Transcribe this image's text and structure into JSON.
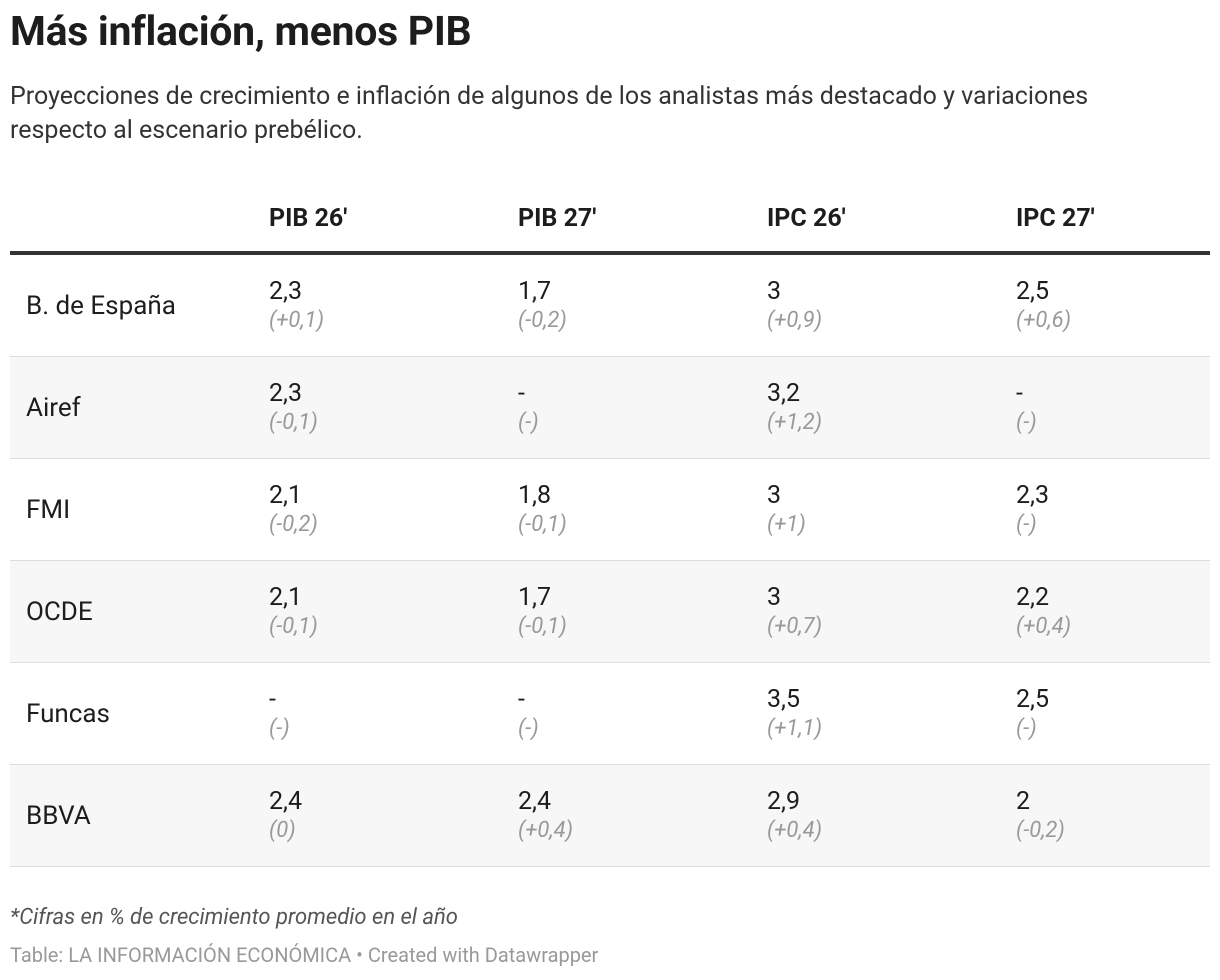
{
  "header": {
    "title": "Más inflación, menos PIB",
    "subtitle": "Proyecciones de crecimiento e inflación de algunos de los analistas más destacado y variaciones respecto al escenario prebélico."
  },
  "table": {
    "columns": [
      "PIB 26'",
      "PIB 27'",
      "IPC 26'",
      "IPC 27'"
    ],
    "rows": [
      {
        "name": "B. de España",
        "cells": [
          [
            "2,3",
            "(+0,1)"
          ],
          [
            "1,7",
            "(-0,2)"
          ],
          [
            "3",
            "(+0,9)"
          ],
          [
            "2,5",
            "(+0,6)"
          ]
        ]
      },
      {
        "name": "Airef",
        "cells": [
          [
            "2,3",
            "(-0,1)"
          ],
          [
            "-",
            "(-)"
          ],
          [
            "3,2",
            "(+1,2)"
          ],
          [
            "-",
            "(-)"
          ]
        ]
      },
      {
        "name": "FMI",
        "cells": [
          [
            "2,1",
            "(-0,2)"
          ],
          [
            "1,8",
            "(-0,1)"
          ],
          [
            "3",
            "(+1)"
          ],
          [
            "2,3",
            "(-)"
          ]
        ]
      },
      {
        "name": "OCDE",
        "cells": [
          [
            "2,1",
            "(-0,1)"
          ],
          [
            "1,7",
            "(-0,1)"
          ],
          [
            "3",
            "(+0,7)"
          ],
          [
            "2,2",
            "(+0,4)"
          ]
        ]
      },
      {
        "name": "Funcas",
        "cells": [
          [
            "-",
            "(-)"
          ],
          [
            "-",
            "(-)"
          ],
          [
            "3,5",
            "(+1,1)"
          ],
          [
            "2,5",
            "(-)"
          ]
        ]
      },
      {
        "name": "BBVA",
        "cells": [
          [
            "2,4",
            "(0)"
          ],
          [
            "2,4",
            "(+0,4)"
          ],
          [
            "2,9",
            "(+0,4)"
          ],
          [
            "2",
            "(-0,2)"
          ]
        ]
      }
    ]
  },
  "footer": {
    "note": "*Cifras en % de crecimiento promedio en el año",
    "source": "Table: LA INFORMACIÓN ECONÓMICA • Created with Datawrapper"
  }
}
